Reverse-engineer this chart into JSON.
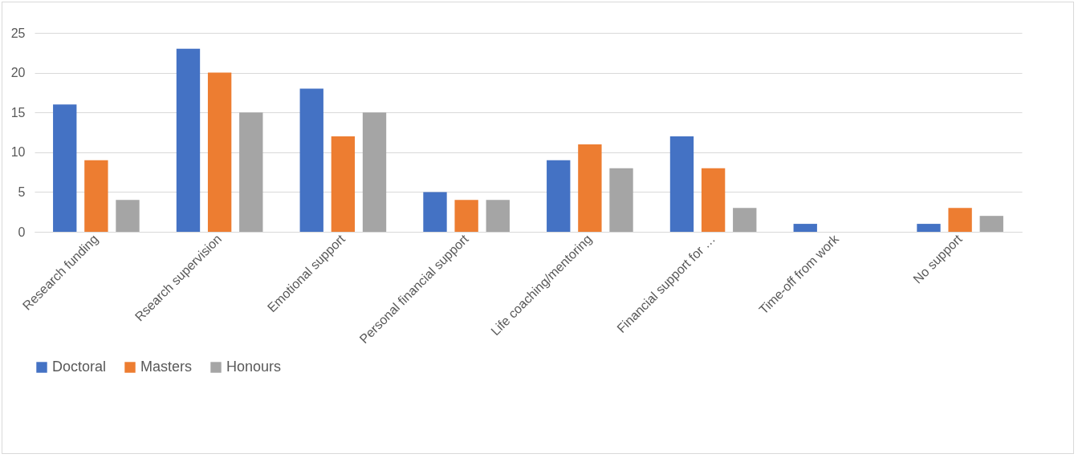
{
  "chart_data": {
    "type": "bar",
    "categories": [
      "Research funding",
      "Rsearch supervision",
      "Emotional support",
      "Personal financial support",
      "Life coaching/mentoring",
      "Financial support for …",
      "Time-off from work",
      "No support"
    ],
    "series": [
      {
        "name": "Doctoral",
        "color": "#4472c4",
        "values": [
          16,
          23,
          18,
          5,
          9,
          12,
          1,
          1
        ]
      },
      {
        "name": "Masters",
        "color": "#ed7d31",
        "values": [
          9,
          20,
          12,
          4,
          11,
          8,
          0,
          3
        ]
      },
      {
        "name": "Honours",
        "color": "#a5a5a5",
        "values": [
          4,
          15,
          15,
          4,
          8,
          3,
          0,
          2
        ]
      }
    ],
    "ylim": [
      0,
      25
    ],
    "yticks": [
      0,
      5,
      10,
      15,
      20,
      25
    ],
    "grid": "y",
    "legend": "bottom"
  }
}
